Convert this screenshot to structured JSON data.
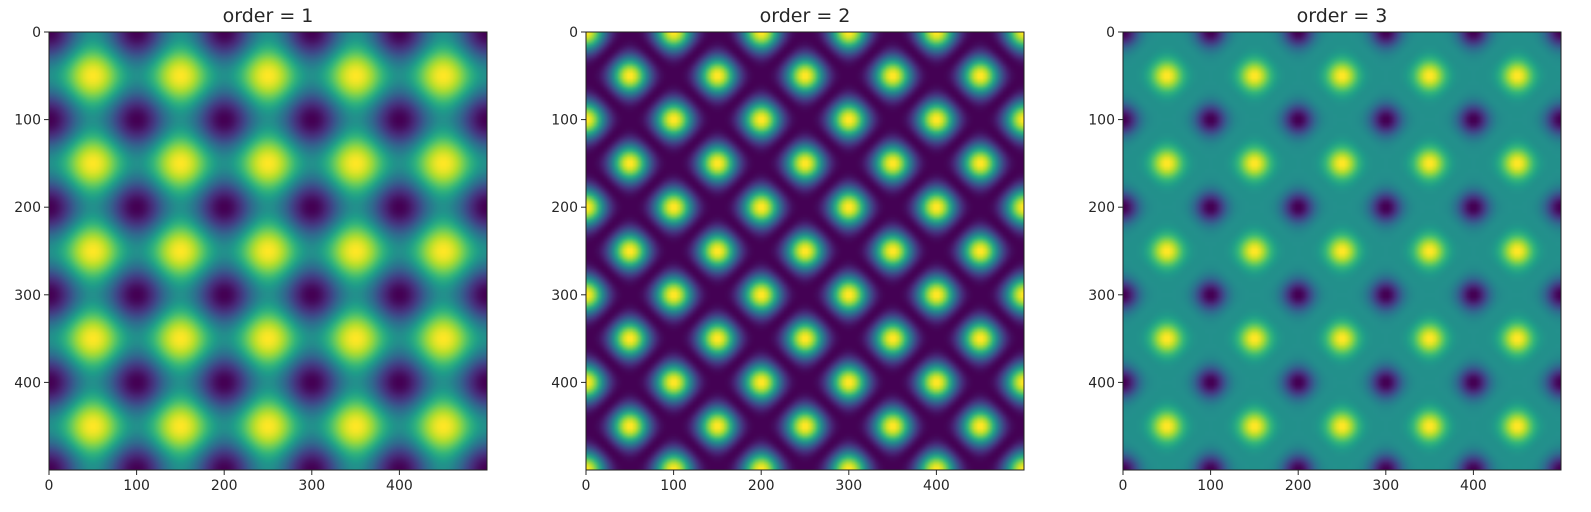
{
  "chart_data": [
    {
      "type": "heatmap",
      "title": "order = 1",
      "colormap": "viridis",
      "grid": false,
      "xlim": [
        0,
        500
      ],
      "ylim": [
        500,
        0
      ],
      "x_ticks": [
        0,
        100,
        200,
        300,
        400
      ],
      "y_ticks": [
        0,
        100,
        200,
        300,
        400
      ],
      "x_tick_labels": [
        "0",
        "100",
        "200",
        "300",
        "400"
      ],
      "y_tick_labels": [
        "0",
        "100",
        "200",
        "300",
        "400"
      ],
      "pattern": {
        "period": 100,
        "peak_centers": [
          50,
          150,
          250,
          350,
          450
        ],
        "trough_centers": [
          0,
          100,
          200,
          300,
          400,
          500
        ],
        "order": 1
      }
    },
    {
      "type": "heatmap",
      "title": "order = 2",
      "colormap": "viridis",
      "grid": false,
      "xlim": [
        0,
        500
      ],
      "ylim": [
        500,
        0
      ],
      "x_ticks": [
        0,
        100,
        200,
        300,
        400
      ],
      "y_ticks": [
        0,
        100,
        200,
        300,
        400
      ],
      "x_tick_labels": [
        "0",
        "100",
        "200",
        "300",
        "400"
      ],
      "y_tick_labels": [
        "0",
        "100",
        "200",
        "300",
        "400"
      ],
      "pattern": {
        "period": 100,
        "peak_centers": [
          50,
          150,
          250,
          350,
          450
        ],
        "trough_centers": [
          0,
          100,
          200,
          300,
          400,
          500
        ],
        "order": 2
      }
    },
    {
      "type": "heatmap",
      "title": "order = 3",
      "colormap": "viridis",
      "grid": false,
      "xlim": [
        0,
        500
      ],
      "ylim": [
        500,
        0
      ],
      "x_ticks": [
        0,
        100,
        200,
        300,
        400
      ],
      "y_ticks": [
        0,
        100,
        200,
        300,
        400
      ],
      "x_tick_labels": [
        "0",
        "100",
        "200",
        "300",
        "400"
      ],
      "y_tick_labels": [
        "0",
        "100",
        "200",
        "300",
        "400"
      ],
      "pattern": {
        "period": 100,
        "peak_centers": [
          50,
          150,
          250,
          350,
          450
        ],
        "trough_centers": [
          0,
          100,
          200,
          300,
          400,
          500
        ],
        "order": 3
      }
    }
  ]
}
